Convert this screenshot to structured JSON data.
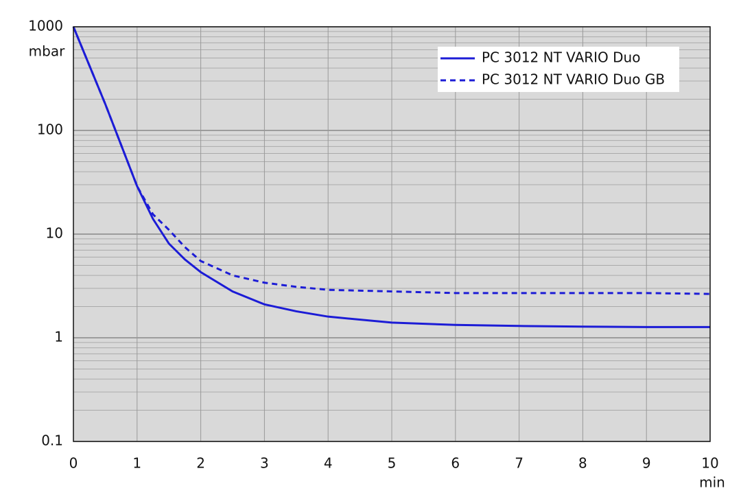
{
  "chart_data": {
    "type": "line",
    "y_label": "mbar",
    "x_label": "min",
    "x": [
      0,
      0.5,
      1,
      1.25,
      1.5,
      1.75,
      2,
      2.5,
      3,
      3.5,
      4,
      5,
      6,
      7,
      8,
      9,
      10
    ],
    "series": [
      {
        "name": "PC 3012 NT VARIO Duo",
        "color": "#1c1cd6",
        "linestyle": "solid",
        "values": [
          1000,
          180,
          29,
          14,
          8.1,
          5.7,
          4.3,
          2.8,
          2.1,
          1.8,
          1.6,
          1.4,
          1.33,
          1.3,
          1.28,
          1.27,
          1.27
        ]
      },
      {
        "name": "PC 3012 NT VARIO Duo GB",
        "color": "#1c1cd6",
        "linestyle": "dashed",
        "values": [
          1000,
          180,
          29,
          15.5,
          11,
          7.5,
          5.5,
          4,
          3.4,
          3.1,
          2.9,
          2.8,
          2.7,
          2.7,
          2.7,
          2.7,
          2.65
        ]
      }
    ],
    "xlim": [
      0,
      10
    ],
    "xticks": [
      0,
      1,
      2,
      3,
      4,
      5,
      6,
      7,
      8,
      9,
      10
    ],
    "ylim": [
      0.1,
      1000
    ],
    "yticks": [
      0.1,
      1,
      10,
      100,
      1000
    ],
    "log_y": true,
    "grid": true,
    "legend": "upper right"
  }
}
